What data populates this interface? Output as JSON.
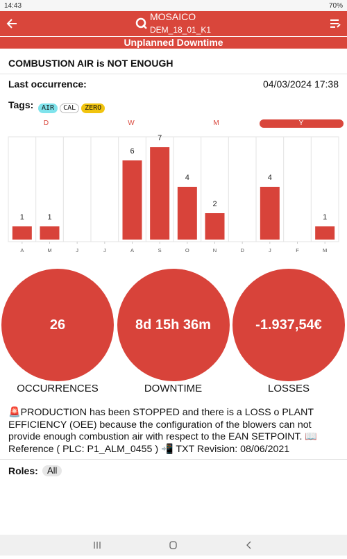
{
  "status_bar": {
    "time": "14:43",
    "battery": "70%"
  },
  "header": {
    "title": "MOSAICO",
    "subtitle": "DEM_18_01_K1",
    "section": "Unplanned Downtime"
  },
  "alarm": {
    "title": "COMBUSTION AIR is NOT ENOUGH",
    "last_occurrence_label": "Last occurrence:",
    "last_occurrence": "04/03/2024 17:38",
    "tags_label": "Tags:",
    "tags": [
      "AIR",
      "CAL",
      "ZERO"
    ]
  },
  "tabs": [
    "D",
    "W",
    "M",
    "Y"
  ],
  "selected_tab": 3,
  "chart_data": {
    "type": "bar",
    "categories": [
      "A",
      "M",
      "J",
      "J",
      "A",
      "S",
      "O",
      "N",
      "D",
      "J",
      "F",
      "M"
    ],
    "values": [
      1,
      1,
      0,
      0,
      6,
      7,
      4,
      2,
      0,
      4,
      0,
      1
    ],
    "color": "#d8433a"
  },
  "kpis": [
    {
      "value": "26",
      "label": "OCCURRENCES"
    },
    {
      "value": "8d 15h 36m",
      "label": "DOWNTIME"
    },
    {
      "value": "-1.937,54€",
      "label": "LOSSES"
    }
  ],
  "description": "🚨PRODUCTION has been STOPPED and there is a LOSS o PLANT EFFICIENCY (OEE) because the configuration of the blowers can not provide enough combustion air with respect to the EAN SETPOINT. 📖 Reference ( PLC: P1_ALM_0455 ) 📲 TXT Revision: 08/06/2021",
  "roles_label": "Roles:",
  "roles": [
    "All"
  ]
}
